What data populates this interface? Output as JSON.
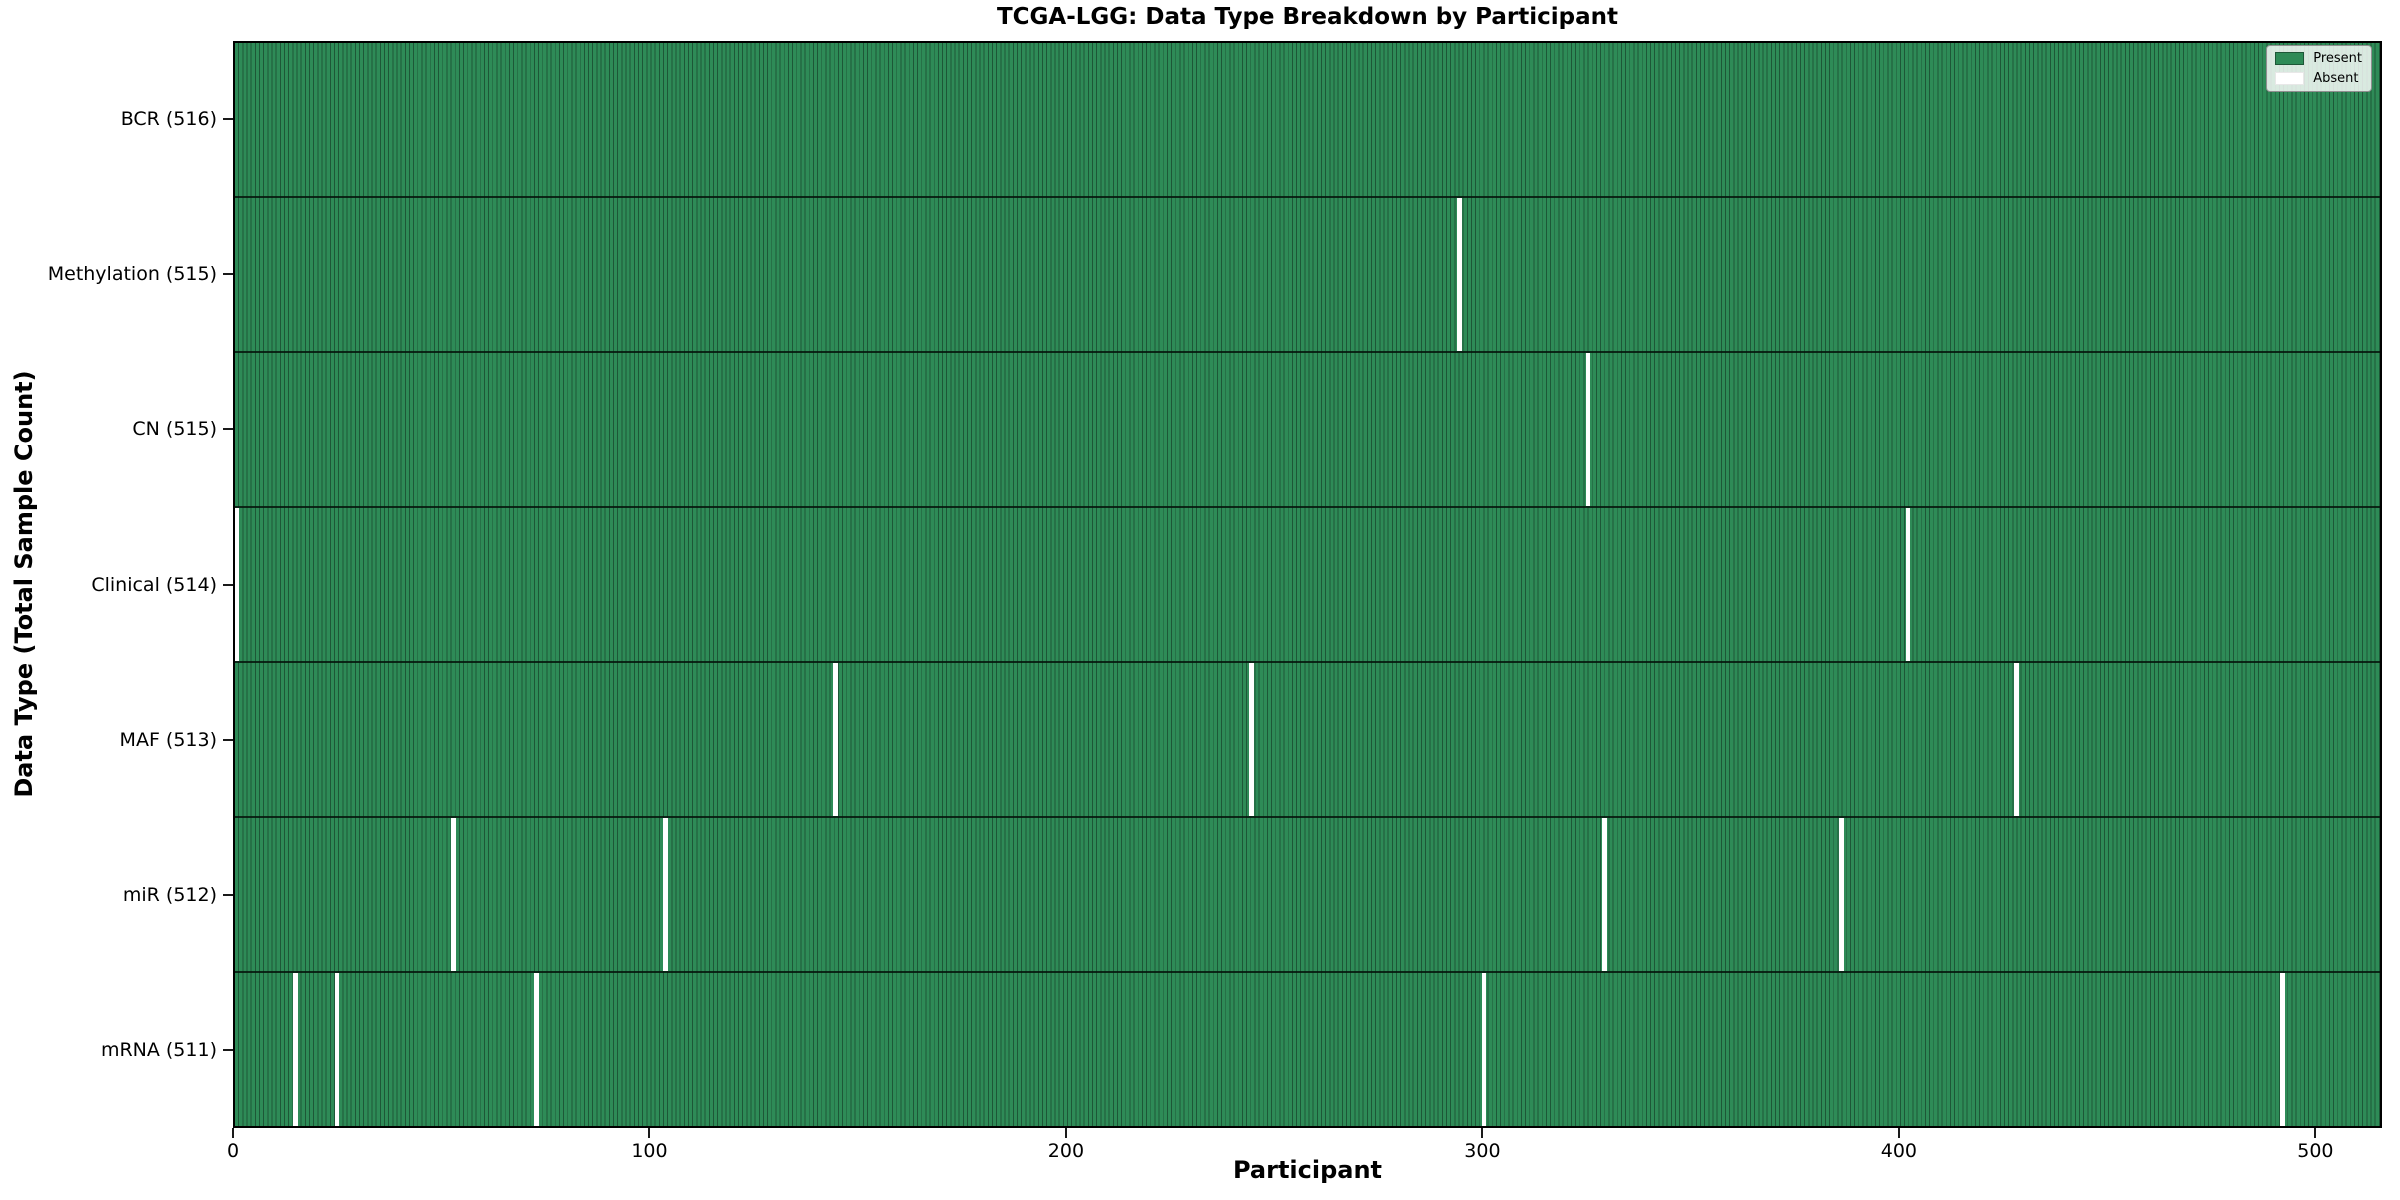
{
  "chart_data": {
    "type": "heatmap",
    "title": "TCGA-LGG: Data Type Breakdown by Participant",
    "xlabel": "Participant",
    "ylabel": "Data Type (Total Sample Count)",
    "n_participants": 516,
    "x_ticks": [
      0,
      100,
      200,
      300,
      400,
      500
    ],
    "xlim": [
      0,
      516
    ],
    "grid": false,
    "legend": {
      "position": "upper right",
      "entries": [
        {
          "label": "Present",
          "color": "#2e8b57"
        },
        {
          "label": "Absent",
          "color": "#ffffff"
        }
      ]
    },
    "rows": [
      {
        "label": "BCR (516)",
        "data_type": "BCR",
        "total": 516,
        "absent_participants": []
      },
      {
        "label": "Methylation (515)",
        "data_type": "Methylation",
        "total": 515,
        "absent_participants": [
          294
        ]
      },
      {
        "label": "CN (515)",
        "data_type": "CN",
        "total": 515,
        "absent_participants": [
          325
        ]
      },
      {
        "label": "Clinical (514)",
        "data_type": "Clinical",
        "total": 514,
        "absent_participants": [
          0,
          402
        ]
      },
      {
        "label": "MAF (513)",
        "data_type": "MAF",
        "total": 513,
        "absent_participants": [
          144,
          244,
          428
        ]
      },
      {
        "label": "miR (512)",
        "data_type": "miR",
        "total": 512,
        "absent_participants": [
          52,
          103,
          329,
          386
        ]
      },
      {
        "label": "mRNA (511)",
        "data_type": "mRNA",
        "total": 511,
        "absent_participants": [
          14,
          24,
          72,
          300,
          492
        ]
      }
    ],
    "colors": {
      "present_fill": "#2e8b57",
      "present_edge": "#1d5737",
      "absent_fill": "#ffffff",
      "row_divider": "#0a140d",
      "axis": "#000000"
    }
  }
}
